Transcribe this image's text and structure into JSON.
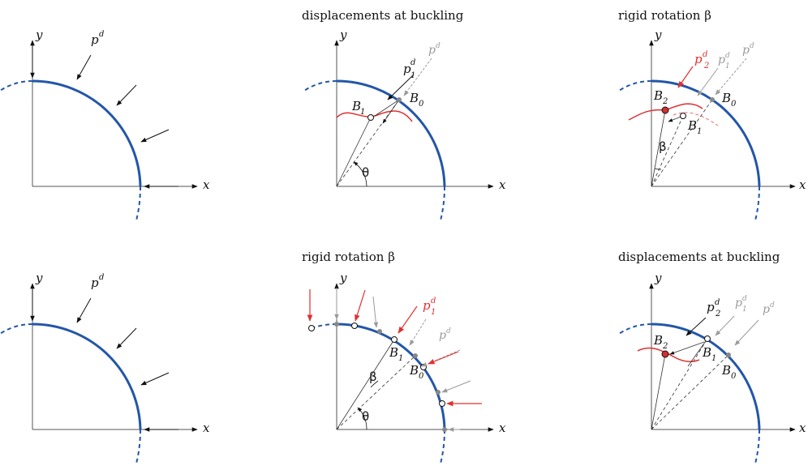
{
  "titles": {
    "top_middle": "displacements at buckling",
    "top_right": "rigid rotation β",
    "bottom_middle": "rigid rotation β",
    "bottom_right": "displacements at buckling"
  },
  "labels": {
    "x": "x",
    "y": "y",
    "p": "p",
    "d": "d",
    "sub1": "1",
    "sub2": "2",
    "B": "B",
    "sub0": "0",
    "theta": "θ",
    "beta": "β"
  },
  "colors": {
    "arc": "#2356a8",
    "red": "#e03030",
    "gray": "#9a9a9a",
    "axis": "#111111"
  }
}
